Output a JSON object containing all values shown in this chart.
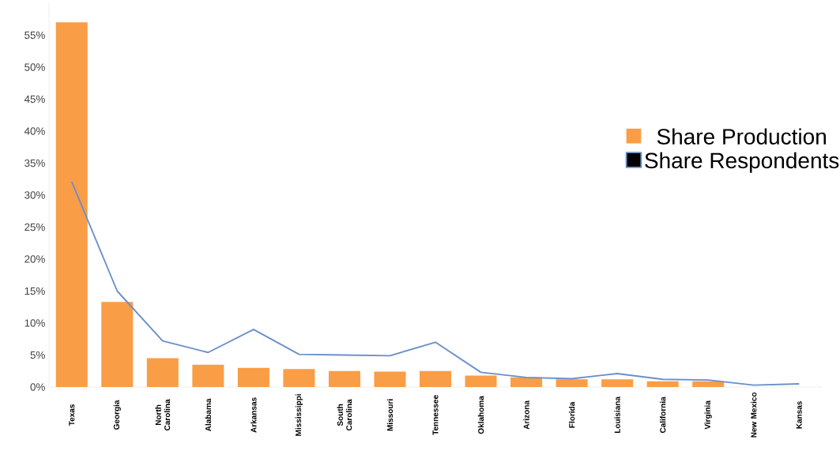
{
  "chart_data": {
    "type": "bar",
    "categories": [
      "Texas",
      "Georgia",
      "North Carolina",
      "Alabama",
      "Arkansas",
      "Mississippi",
      "South Carolina",
      "Missouri",
      "Tennessee",
      "Oklahoma",
      "Arizona",
      "Florida",
      "Louisiana",
      "California",
      "Virginia",
      "New Mexico",
      "Kansas"
    ],
    "series": [
      {
        "name": "Share Production",
        "color": "#f99d46",
        "values": [
          57,
          13.3,
          4.5,
          3.5,
          3.0,
          2.8,
          2.5,
          2.4,
          2.5,
          1.8,
          1.5,
          1.2,
          1.2,
          0.9,
          0.9,
          0,
          0
        ]
      },
      {
        "name": "Share Respondents",
        "type": "line",
        "color": "#6a8fc9",
        "values": [
          32.1,
          15.0,
          7.2,
          5.4,
          9.0,
          5.1,
          5.0,
          4.9,
          7.0,
          2.3,
          1.5,
          1.3,
          2.1,
          1.2,
          1.1,
          0.3,
          0.5
        ]
      }
    ],
    "ylim": [
      0,
      60
    ],
    "yticks": [
      {
        "value": 0,
        "label": "0%"
      },
      {
        "value": 5,
        "label": "5%"
      },
      {
        "value": 10,
        "label": "10%"
      },
      {
        "value": 15,
        "label": "15%"
      },
      {
        "value": 20,
        "label": "20%"
      },
      {
        "value": 25,
        "label": "25%"
      },
      {
        "value": 30,
        "label": "30%"
      },
      {
        "value": 35,
        "label": "35%"
      },
      {
        "value": 40,
        "label": "40%"
      },
      {
        "value": 45,
        "label": "45%"
      },
      {
        "value": 50,
        "label": "50%"
      },
      {
        "value": 55,
        "label": "55%"
      }
    ],
    "legend": "right",
    "grid": false
  }
}
